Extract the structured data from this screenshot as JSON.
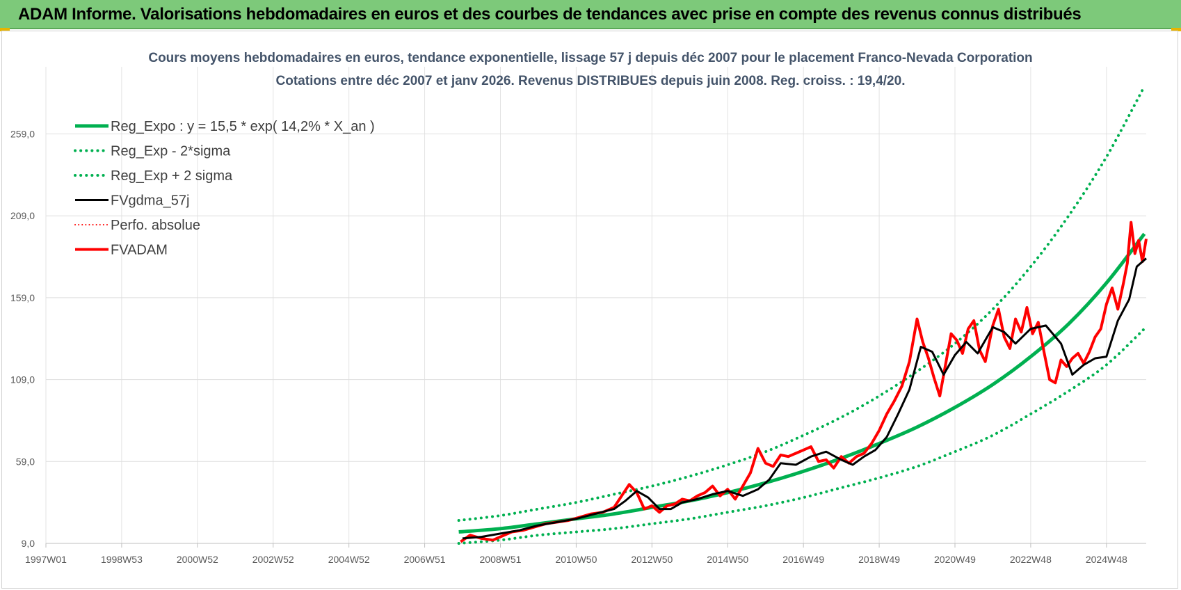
{
  "header": {
    "title": "ADAM Informe. Valorisations hebdomadaires en euros et des courbes de tendances avec prise en compte des revenus connus distribués"
  },
  "colors": {
    "header_bg": "#7dc97a",
    "trend": "#00b050",
    "smooth": "#000000",
    "price": "#ff0000",
    "title": "#44546a"
  },
  "chart_data": {
    "type": "line",
    "title_line1": "Cours moyens hebdomadaires en euros, tendance exponentielle, lissage 57 j depuis déc 2007 pour le placement Franco-Nevada Corporation",
    "title_line2": "Cotations entre déc 2007 et janv 2026. Revenus DISTRIBUES depuis juin 2008. Reg. croiss. : 19,4/20.",
    "x_tick_labels": [
      "1997W01",
      "1998W53",
      "2000W52",
      "2002W52",
      "2004W52",
      "2006W51",
      "2008W51",
      "2010W50",
      "2012W50",
      "2014W50",
      "2016W49",
      "2018W49",
      "2020W49",
      "2022W48",
      "2024W48"
    ],
    "x_tick_years": [
      1997.0,
      1999.0,
      2001.0,
      2003.0,
      2005.0,
      2007.0,
      2009.0,
      2011.0,
      2013.0,
      2015.0,
      2017.0,
      2019.0,
      2021.0,
      2023.0,
      2025.0
    ],
    "xlim": [
      1997.0,
      2026.05
    ],
    "y_tick_labels": [
      "9,0",
      "59,0",
      "109,0",
      "159,0",
      "209,0",
      "259,0"
    ],
    "y_ticks": [
      9,
      59,
      109,
      159,
      209,
      259
    ],
    "ylim": [
      9,
      300
    ],
    "grid": true,
    "legend_position": "top-left",
    "legend": [
      {
        "label": "Reg_Expo : y = 15,5 * exp( 14,2% *  X_an )",
        "color": "#00b050",
        "style": "solid",
        "width": 5
      },
      {
        "label": "Reg_Exp - 2*sigma",
        "color": "#00b050",
        "style": "dotted",
        "width": 4
      },
      {
        "label": "Reg_Exp + 2 sigma",
        "color": "#00b050",
        "style": "dotted",
        "width": 4
      },
      {
        "label": "FVgdma_57j",
        "color": "#000000",
        "style": "solid",
        "width": 3
      },
      {
        "label": "Perfo. absolue",
        "color": "#ff0000",
        "style": "dotted",
        "width": 2
      },
      {
        "label": "FVADAM",
        "color": "#ff0000",
        "style": "solid",
        "width": 4
      }
    ],
    "series": [
      {
        "name": "Reg_Expo : y = 15,5 * exp( 14,2% *  X_an )",
        "x": [
          2007.9,
          2009.0,
          2010.0,
          2011.0,
          2012.0,
          2013.0,
          2014.0,
          2015.0,
          2016.0,
          2017.0,
          2018.0,
          2019.0,
          2020.0,
          2021.0,
          2022.0,
          2023.0,
          2024.0,
          2025.0,
          2026.0
        ],
        "values": [
          16,
          18,
          21,
          24,
          27,
          31,
          35,
          40,
          46,
          53,
          61,
          70,
          80,
          92,
          106,
          123,
          143,
          168,
          198
        ]
      },
      {
        "name": "Reg_Exp - 2*sigma",
        "x": [
          2007.9,
          2009.0,
          2010.0,
          2011.0,
          2012.0,
          2013.0,
          2014.0,
          2015.0,
          2016.0,
          2017.0,
          2018.0,
          2019.0,
          2020.0,
          2021.0,
          2022.0,
          2023.0,
          2024.0,
          2025.0,
          2026.0
        ],
        "values": [
          9,
          11,
          14,
          16,
          18,
          21,
          24,
          28,
          32,
          37,
          43,
          49,
          56,
          65,
          75,
          88,
          102,
          118,
          140
        ]
      },
      {
        "name": "Reg_Exp + 2 sigma",
        "x": [
          2007.9,
          2009.0,
          2010.0,
          2011.0,
          2012.0,
          2013.0,
          2014.0,
          2015.0,
          2016.0,
          2017.0,
          2018.0,
          2019.0,
          2020.0,
          2021.0,
          2022.0,
          2023.0,
          2024.0,
          2025.0,
          2026.0
        ],
        "values": [
          23,
          26,
          30,
          34,
          39,
          44,
          50,
          57,
          65,
          75,
          86,
          99,
          114,
          131,
          152,
          178,
          209,
          245,
          288
        ]
      },
      {
        "name": "FVgdma_57j",
        "x": [
          2008.0,
          2008.5,
          2009.0,
          2009.5,
          2010.0,
          2010.5,
          2011.0,
          2011.5,
          2012.0,
          2012.3,
          2012.6,
          2012.9,
          2013.2,
          2013.5,
          2013.8,
          2014.2,
          2014.6,
          2015.0,
          2015.4,
          2015.8,
          2016.1,
          2016.4,
          2016.8,
          2017.2,
          2017.6,
          2018.0,
          2018.3,
          2018.6,
          2018.9,
          2019.2,
          2019.5,
          2019.8,
          2020.1,
          2020.4,
          2020.7,
          2021.0,
          2021.3,
          2021.6,
          2022.0,
          2022.3,
          2022.6,
          2023.0,
          2023.4,
          2023.8,
          2024.1,
          2024.4,
          2024.7,
          2025.0,
          2025.3,
          2025.6,
          2025.8,
          2026.05
        ],
        "values": [
          12,
          13,
          15,
          17,
          20,
          22,
          24,
          27,
          30,
          35,
          41,
          37,
          30,
          30,
          34,
          36,
          39,
          41,
          38,
          42,
          48,
          58,
          57,
          62,
          65,
          60,
          57,
          62,
          66,
          74,
          88,
          103,
          129,
          126,
          112,
          124,
          132,
          125,
          141,
          138,
          131,
          140,
          142,
          131,
          112,
          118,
          122,
          123,
          145,
          158,
          178,
          183
        ]
      },
      {
        "name": "FVADAM",
        "x": [
          2007.95,
          2008.2,
          2008.5,
          2008.8,
          2009.0,
          2009.3,
          2009.6,
          2009.9,
          2010.2,
          2010.5,
          2010.8,
          2011.1,
          2011.4,
          2011.7,
          2012.0,
          2012.2,
          2012.4,
          2012.6,
          2012.8,
          2013.0,
          2013.2,
          2013.4,
          2013.6,
          2013.8,
          2014.0,
          2014.2,
          2014.4,
          2014.6,
          2014.8,
          2015.0,
          2015.2,
          2015.4,
          2015.6,
          2015.8,
          2016.0,
          2016.2,
          2016.4,
          2016.6,
          2016.8,
          2017.0,
          2017.2,
          2017.4,
          2017.6,
          2017.8,
          2018.0,
          2018.2,
          2018.4,
          2018.6,
          2018.8,
          2019.0,
          2019.2,
          2019.4,
          2019.6,
          2019.8,
          2020.0,
          2020.15,
          2020.3,
          2020.45,
          2020.6,
          2020.75,
          2020.9,
          2021.05,
          2021.2,
          2021.35,
          2021.5,
          2021.65,
          2021.8,
          2022.0,
          2022.15,
          2022.3,
          2022.45,
          2022.6,
          2022.75,
          2022.9,
          2023.05,
          2023.2,
          2023.35,
          2023.5,
          2023.65,
          2023.8,
          2023.95,
          2024.1,
          2024.25,
          2024.4,
          2024.55,
          2024.7,
          2024.85,
          2025.0,
          2025.15,
          2025.3,
          2025.45,
          2025.55,
          2025.65,
          2025.75,
          2025.85,
          2025.95,
          2026.05
        ],
        "values": [
          10,
          14,
          12,
          11,
          13,
          16,
          17,
          19,
          21,
          22,
          23,
          25,
          27,
          28,
          31,
          38,
          45,
          40,
          30,
          32,
          28,
          32,
          33,
          36,
          35,
          38,
          40,
          44,
          38,
          42,
          36,
          44,
          52,
          67,
          58,
          56,
          63,
          62,
          64,
          66,
          68,
          59,
          60,
          55,
          62,
          58,
          62,
          64,
          70,
          78,
          88,
          96,
          105,
          120,
          146,
          132,
          122,
          110,
          99,
          118,
          137,
          133,
          125,
          140,
          145,
          127,
          120,
          142,
          152,
          135,
          128,
          146,
          138,
          153,
          137,
          144,
          126,
          109,
          107,
          121,
          117,
          122,
          125,
          119,
          126,
          135,
          140,
          155,
          165,
          152,
          168,
          180,
          205,
          186,
          194,
          181,
          195
        ]
      }
    ]
  }
}
